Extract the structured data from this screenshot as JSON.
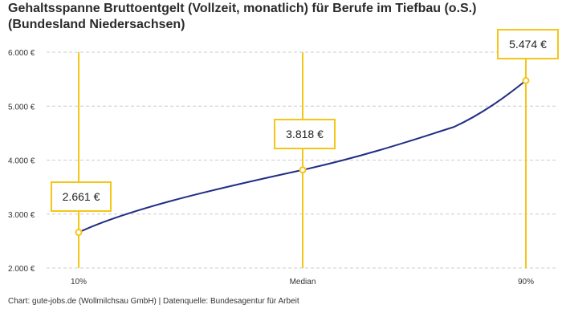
{
  "title_line1": "Gehaltsspanne Bruttoentgelt (Vollzeit, monatlich) für Berufe im Tiefbau (o.S.)",
  "title_line2": "(Bundesland Niedersachsen)",
  "footer": "Chart: gute-jobs.de (Wollmilchsau GmbH) | Datenquelle: Bundesagentur für Arbeit",
  "colors": {
    "line": "#1f2d86",
    "accent": "#f5c518",
    "grid": "#cccccc"
  },
  "chart_data": {
    "type": "line",
    "categories": [
      "10%",
      "Median",
      "90%"
    ],
    "values": [
      2661,
      3818,
      5474
    ],
    "value_labels": [
      "2.661 €",
      "3.818 €",
      "5.474 €"
    ],
    "y_ticks": [
      2000,
      3000,
      4000,
      5000,
      6000
    ],
    "y_tick_labels": [
      "2.000 €",
      "3.000 €",
      "4.000 €",
      "5.000 €",
      "6.000 €"
    ],
    "ylim": [
      2000,
      6000
    ],
    "grid": true
  }
}
